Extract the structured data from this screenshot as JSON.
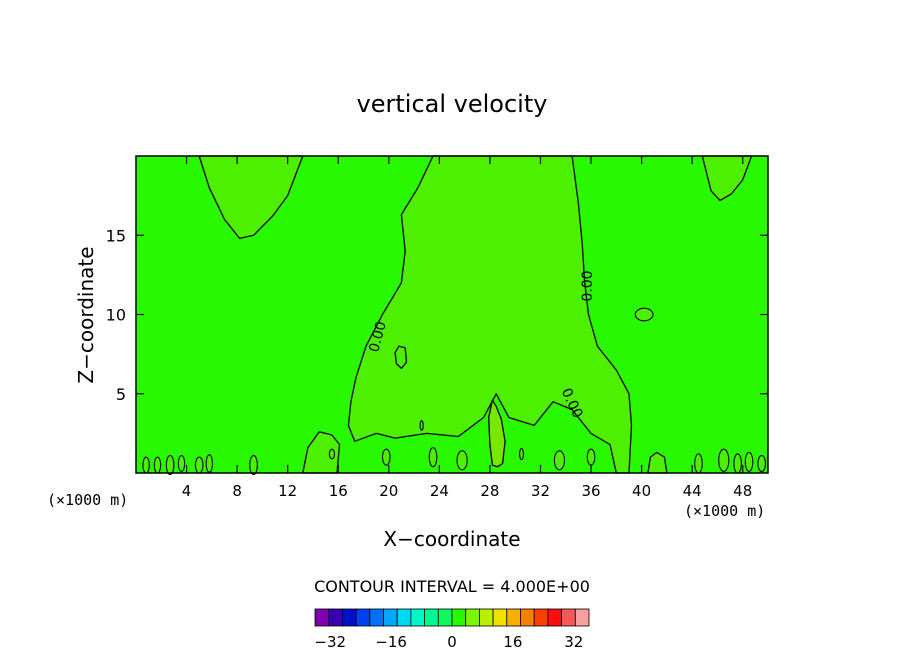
{
  "chart_data": {
    "type": "contour",
    "title": "vertical velocity",
    "xlabel": "X−coordinate",
    "ylabel": "Z−coordinate",
    "x_unit_left": "(×1000 m)",
    "x_unit_right": "(×1000 m)",
    "xlim": [
      0,
      50
    ],
    "ylim": [
      0,
      20
    ],
    "x_ticks": [
      4,
      8,
      12,
      16,
      20,
      24,
      28,
      32,
      36,
      40,
      44,
      48
    ],
    "y_ticks": [
      5,
      10,
      15
    ],
    "contour_labels": [
      "0.00",
      "0.00",
      "0.00"
    ],
    "contour_interval_text": "CONTOUR INTERVAL = 4.000E+00",
    "colorbar": {
      "min": -36,
      "max": 36,
      "step": 4,
      "tick_labels": [
        "−32",
        "−16",
        "0",
        "16",
        "32"
      ],
      "tick_values": [
        -32,
        -16,
        0,
        16,
        32
      ],
      "colors": [
        "#8000b0",
        "#3a00b0",
        "#0010c8",
        "#0040f0",
        "#0070ff",
        "#00a8ff",
        "#00d8f0",
        "#00f8c8",
        "#00f890",
        "#10f860",
        "#28f800",
        "#78f800",
        "#b8f000",
        "#f0e000",
        "#f8b000",
        "#f88000",
        "#f84000",
        "#f81010",
        "#f85858",
        "#f8a0a0"
      ]
    },
    "fills": {
      "background": "#28f800",
      "positive": "#4cf000",
      "strong_positive": "#78e800"
    }
  }
}
